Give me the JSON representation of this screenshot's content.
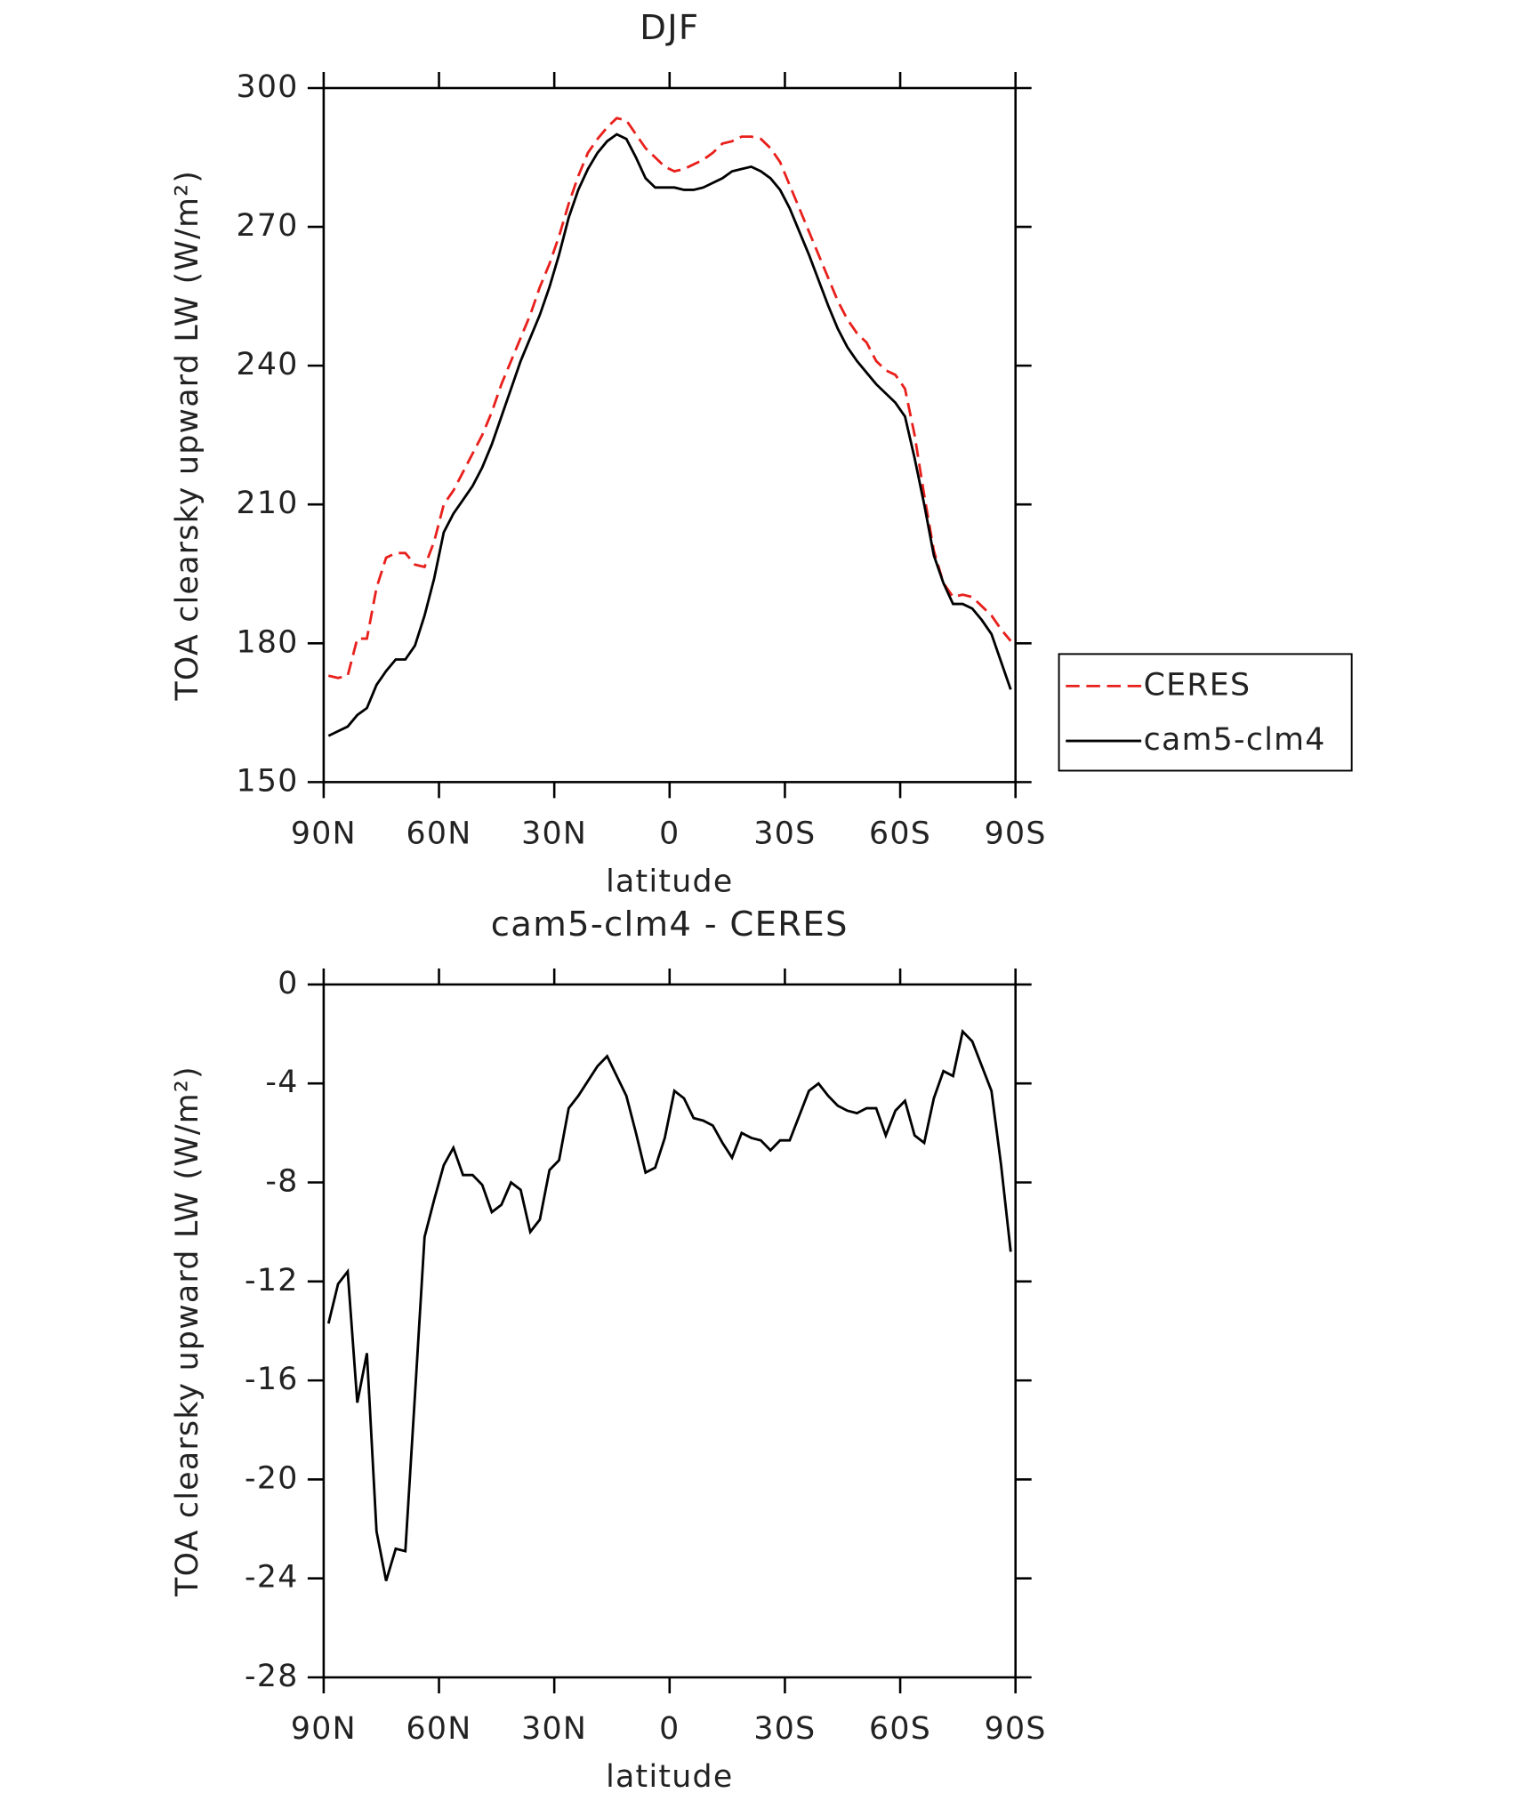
{
  "chart_data": [
    {
      "type": "line",
      "title": "DJF",
      "x_label": "latitude",
      "y_label": "TOA clearsky upward LW (W/m²)",
      "x": [
        88.75,
        86.25,
        83.75,
        81.25,
        78.75,
        76.25,
        73.75,
        71.25,
        68.75,
        66.25,
        63.75,
        61.25,
        58.75,
        56.25,
        53.75,
        51.25,
        48.75,
        46.25,
        43.75,
        41.25,
        38.75,
        36.25,
        33.75,
        31.25,
        28.75,
        26.25,
        23.75,
        21.25,
        18.75,
        16.25,
        13.75,
        11.25,
        8.75,
        6.25,
        3.75,
        1.25,
        -1.25,
        -3.75,
        -6.25,
        -8.75,
        -11.25,
        -13.75,
        -16.25,
        -18.75,
        -21.25,
        -23.75,
        -26.25,
        -28.75,
        -31.25,
        -33.75,
        -36.25,
        -38.75,
        -41.25,
        -43.75,
        -46.25,
        -48.75,
        -51.25,
        -53.75,
        -56.25,
        -58.75,
        -61.25,
        -63.75,
        -66.25,
        -68.75,
        -71.25,
        -73.75,
        -76.25,
        -78.75,
        -81.25,
        -83.75,
        -86.25,
        -88.75
      ],
      "series": [
        {
          "name": "CERES",
          "color": "#e8201c",
          "dash": "dashed",
          "values": [
            173,
            172.5,
            173,
            181,
            181,
            192,
            198.5,
            199.5,
            199.5,
            197,
            196.5,
            202,
            210,
            213,
            217,
            221,
            225,
            230,
            236,
            241,
            246,
            251,
            257,
            262,
            268,
            275,
            281,
            286,
            289,
            291.5,
            293.5,
            293,
            290,
            287,
            285,
            283,
            282,
            282.5,
            283.5,
            284.5,
            286,
            288,
            288.5,
            289.5,
            289.5,
            289,
            287,
            284,
            279,
            274,
            269,
            264,
            259,
            254,
            250,
            247,
            245,
            241,
            239,
            238,
            235,
            225,
            212,
            200,
            193,
            190,
            190.5,
            190,
            188,
            186,
            183,
            180.5
          ]
        },
        {
          "name": "cam5-clm4",
          "color": "#000000",
          "dash": "solid",
          "values": [
            160,
            161,
            162,
            164.5,
            166,
            171,
            174,
            176.5,
            176.5,
            179.5,
            186,
            194,
            204,
            208,
            211,
            214,
            218,
            223,
            229,
            235,
            241,
            246,
            251,
            257,
            264,
            272,
            278,
            282.5,
            286,
            288.5,
            290,
            289,
            285,
            280.5,
            278.5,
            278.5,
            278.5,
            278,
            278,
            278.5,
            279.5,
            280.5,
            282,
            282.5,
            283,
            282,
            280.5,
            278,
            274,
            269,
            264,
            258.5,
            253,
            248,
            244,
            241,
            238.5,
            236,
            234,
            232,
            229,
            220,
            210,
            199,
            193,
            188.5,
            188.5,
            187.5,
            185,
            182,
            176,
            170
          ]
        }
      ],
      "xlim": [
        90,
        -90
      ],
      "xticks": [
        {
          "value": 90,
          "label": "90N"
        },
        {
          "value": 60,
          "label": "60N"
        },
        {
          "value": 30,
          "label": "30N"
        },
        0,
        {
          "value": -30,
          "label": "30S"
        },
        {
          "value": -60,
          "label": "60S"
        },
        {
          "value": -90,
          "label": "90S"
        }
      ],
      "ylim": [
        150,
        300
      ],
      "yticks": [
        150,
        180,
        210,
        240,
        270,
        300
      ],
      "legend": "right"
    },
    {
      "type": "line",
      "title": "cam5-clm4 - CERES",
      "x_label": "latitude",
      "y_label": "TOA clearsky upward LW (W/m²)",
      "x": [
        88.75,
        86.25,
        83.75,
        81.25,
        78.75,
        76.25,
        73.75,
        71.25,
        68.75,
        66.25,
        63.75,
        61.25,
        58.75,
        56.25,
        53.75,
        51.25,
        48.75,
        46.25,
        43.75,
        41.25,
        38.75,
        36.25,
        33.75,
        31.25,
        28.75,
        26.25,
        23.75,
        21.25,
        18.75,
        16.25,
        13.75,
        11.25,
        8.75,
        6.25,
        3.75,
        1.25,
        -1.25,
        -3.75,
        -6.25,
        -8.75,
        -11.25,
        -13.75,
        -16.25,
        -18.75,
        -21.25,
        -23.75,
        -26.25,
        -28.75,
        -31.25,
        -33.75,
        -36.25,
        -38.75,
        -41.25,
        -43.75,
        -46.25,
        -48.75,
        -51.25,
        -53.75,
        -56.25,
        -58.75,
        -61.25,
        -63.75,
        -66.25,
        -68.75,
        -71.25,
        -73.75,
        -76.25,
        -78.75,
        -81.25,
        -83.75,
        -86.25,
        -88.75
      ],
      "values": [
        -13.7,
        -12.1,
        -11.6,
        -16.9,
        -14.9,
        -22.1,
        -24.1,
        -22.8,
        -22.9,
        -16.6,
        -10.2,
        -8.7,
        -7.3,
        -6.6,
        -7.7,
        -7.7,
        -8.1,
        -9.2,
        -8.9,
        -8.0,
        -8.3,
        -10.0,
        -9.5,
        -7.5,
        -7.1,
        -5.0,
        -4.5,
        -3.9,
        -3.3,
        -2.9,
        -3.7,
        -4.5,
        -6.0,
        -7.6,
        -7.4,
        -6.2,
        -4.3,
        -4.6,
        -5.4,
        -5.5,
        -5.7,
        -6.4,
        -7.0,
        -6.0,
        -6.2,
        -6.3,
        -6.7,
        -6.3,
        -6.3,
        -5.3,
        -4.3,
        -4.0,
        -4.5,
        -4.9,
        -5.1,
        -5.2,
        -5.0,
        -5.0,
        -6.1,
        -5.1,
        -4.7,
        -6.1,
        -6.4,
        -4.6,
        -3.5,
        -3.7,
        -1.9,
        -2.3,
        -3.3,
        -4.3,
        -7.3,
        -10.8
      ],
      "color": "#000000",
      "xlim": [
        90,
        -90
      ],
      "xticks": [
        {
          "value": 90,
          "label": "90N"
        },
        {
          "value": 60,
          "label": "60N"
        },
        {
          "value": 30,
          "label": "30N"
        },
        0,
        {
          "value": -30,
          "label": "30S"
        },
        {
          "value": -60,
          "label": "60S"
        },
        {
          "value": -90,
          "label": "90S"
        }
      ],
      "ylim": [
        -28,
        0
      ],
      "yticks": [
        -28,
        -24,
        -20,
        -16,
        -12,
        -8,
        -4,
        0
      ]
    }
  ]
}
